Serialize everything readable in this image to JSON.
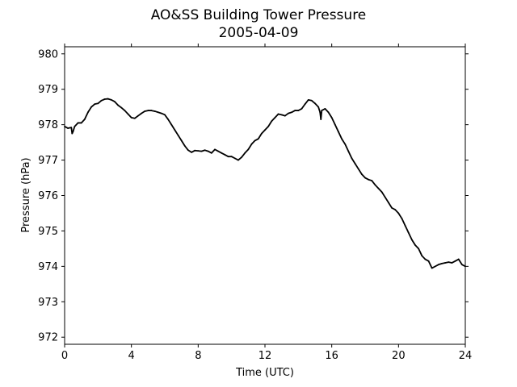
{
  "chart_data": {
    "type": "line",
    "title": "AO&SS Building Tower Pressure",
    "subtitle": "2005-04-09",
    "xlabel": "Time (UTC)",
    "ylabel": "Pressure (hPa)",
    "xlim": [
      0,
      24
    ],
    "ylim": [
      971.8,
      980.2
    ],
    "xticks": [
      0,
      4,
      8,
      12,
      16,
      20,
      24
    ],
    "yticks": [
      972,
      973,
      974,
      975,
      976,
      977,
      978,
      979,
      980
    ],
    "grid": false,
    "legend": false,
    "line_color": "#000000",
    "series": [
      {
        "x": [
          0,
          0.2,
          0.4,
          0.45,
          0.5,
          0.6,
          0.8,
          1.0,
          1.2,
          1.4,
          1.6,
          1.8,
          2.0,
          2.2,
          2.4,
          2.6,
          2.8,
          3.0,
          3.2,
          3.4,
          3.6,
          3.8,
          4.0,
          4.2,
          4.4,
          4.6,
          4.8,
          5.0,
          5.2,
          5.4,
          5.6,
          5.8,
          6.0,
          6.2,
          6.4,
          6.6,
          6.8,
          7.0,
          7.2,
          7.4,
          7.6,
          7.8,
          8.0,
          8.2,
          8.4,
          8.6,
          8.8,
          9.0,
          9.2,
          9.4,
          9.6,
          9.8,
          10.0,
          10.2,
          10.4,
          10.6,
          10.8,
          11.0,
          11.2,
          11.4,
          11.6,
          11.8,
          12.0,
          12.2,
          12.4,
          12.6,
          12.8,
          13.0,
          13.2,
          13.4,
          13.6,
          13.8,
          14.0,
          14.2,
          14.4,
          14.6,
          14.8,
          15.0,
          15.2,
          15.3,
          15.35,
          15.4,
          15.6,
          15.8,
          16.0,
          16.2,
          16.4,
          16.6,
          16.8,
          17.0,
          17.2,
          17.4,
          17.6,
          17.8,
          18.0,
          18.2,
          18.4,
          18.6,
          18.8,
          19.0,
          19.2,
          19.4,
          19.6,
          19.8,
          20.0,
          20.2,
          20.4,
          20.6,
          20.8,
          21.0,
          21.2,
          21.4,
          21.6,
          21.8,
          22.0,
          22.2,
          22.4,
          22.6,
          22.8,
          23.0,
          23.2,
          23.4,
          23.6,
          23.8,
          24.0
        ],
        "y": [
          977.95,
          977.9,
          977.92,
          977.75,
          977.8,
          977.95,
          978.05,
          978.05,
          978.15,
          978.35,
          978.5,
          978.58,
          978.6,
          978.68,
          978.72,
          978.73,
          978.7,
          978.65,
          978.55,
          978.48,
          978.4,
          978.3,
          978.2,
          978.18,
          978.25,
          978.32,
          978.38,
          978.4,
          978.4,
          978.38,
          978.35,
          978.32,
          978.28,
          978.15,
          978.0,
          977.85,
          977.7,
          977.55,
          977.4,
          977.28,
          977.22,
          977.27,
          977.26,
          977.25,
          977.28,
          977.25,
          977.2,
          977.3,
          977.25,
          977.2,
          977.15,
          977.1,
          977.1,
          977.05,
          977.0,
          977.08,
          977.2,
          977.3,
          977.45,
          977.55,
          977.6,
          977.75,
          977.85,
          977.95,
          978.1,
          978.2,
          978.3,
          978.28,
          978.25,
          978.32,
          978.35,
          978.4,
          978.4,
          978.45,
          978.58,
          978.7,
          978.68,
          978.6,
          978.5,
          978.35,
          978.15,
          978.4,
          978.45,
          978.35,
          978.2,
          978.0,
          977.8,
          977.6,
          977.45,
          977.25,
          977.05,
          976.9,
          976.75,
          976.6,
          976.5,
          976.45,
          976.42,
          976.3,
          976.2,
          976.1,
          975.95,
          975.8,
          975.65,
          975.6,
          975.5,
          975.35,
          975.15,
          974.95,
          974.75,
          974.6,
          974.5,
          974.3,
          974.2,
          974.15,
          973.95,
          974.0,
          974.05,
          974.08,
          974.1,
          974.12,
          974.1,
          974.15,
          974.2,
          974.05,
          974.0
        ]
      }
    ]
  }
}
